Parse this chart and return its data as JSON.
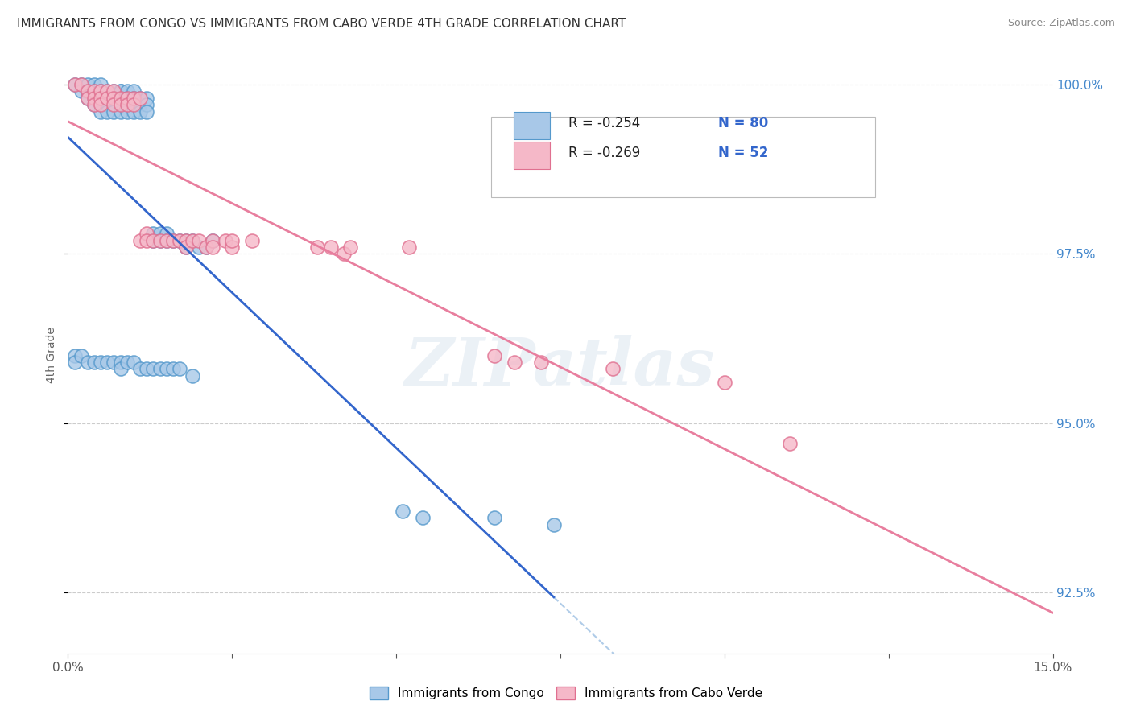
{
  "title": "IMMIGRANTS FROM CONGO VS IMMIGRANTS FROM CABO VERDE 4TH GRADE CORRELATION CHART",
  "source": "Source: ZipAtlas.com",
  "ylabel": "4th Grade",
  "congo_color_face": "#a8c8e8",
  "congo_color_edge": "#5599cc",
  "caboverde_color_face": "#f5b8c8",
  "caboverde_color_edge": "#e07090",
  "trendline_congo": "#3366cc",
  "trendline_caboverde": "#e87e9e",
  "trendline_dashed": "#b0cce8",
  "watermark": "ZIPatlas",
  "background": "#ffffff",
  "grid_color": "#cccccc",
  "x_min": 0.0,
  "x_max": 0.15,
  "y_min": 0.916,
  "y_max": 1.004,
  "ytick_color": "#4488cc",
  "xtick_color": "#555555",
  "congo_x": [
    0.001,
    0.002,
    0.002,
    0.003,
    0.003,
    0.003,
    0.004,
    0.004,
    0.004,
    0.004,
    0.005,
    0.005,
    0.005,
    0.005,
    0.005,
    0.006,
    0.006,
    0.006,
    0.006,
    0.007,
    0.007,
    0.007,
    0.007,
    0.008,
    0.008,
    0.008,
    0.008,
    0.008,
    0.009,
    0.009,
    0.009,
    0.009,
    0.01,
    0.01,
    0.01,
    0.01,
    0.011,
    0.011,
    0.011,
    0.012,
    0.012,
    0.012,
    0.013,
    0.013,
    0.014,
    0.014,
    0.015,
    0.015,
    0.016,
    0.017,
    0.018,
    0.018,
    0.019,
    0.02,
    0.021,
    0.022,
    0.001,
    0.001,
    0.002,
    0.003,
    0.004,
    0.005,
    0.006,
    0.007,
    0.008,
    0.008,
    0.009,
    0.01,
    0.011,
    0.012,
    0.013,
    0.014,
    0.015,
    0.016,
    0.017,
    0.019,
    0.051,
    0.054,
    0.065,
    0.074
  ],
  "congo_y": [
    1.0,
    1.0,
    0.999,
    1.0,
    0.999,
    0.998,
    1.0,
    0.999,
    0.998,
    0.997,
    1.0,
    0.999,
    0.998,
    0.997,
    0.996,
    0.999,
    0.998,
    0.997,
    0.996,
    0.999,
    0.998,
    0.997,
    0.996,
    0.999,
    0.999,
    0.998,
    0.997,
    0.996,
    0.999,
    0.998,
    0.997,
    0.996,
    0.999,
    0.998,
    0.997,
    0.996,
    0.998,
    0.997,
    0.996,
    0.998,
    0.997,
    0.996,
    0.978,
    0.977,
    0.978,
    0.977,
    0.978,
    0.977,
    0.977,
    0.977,
    0.977,
    0.976,
    0.977,
    0.976,
    0.976,
    0.977,
    0.96,
    0.959,
    0.96,
    0.959,
    0.959,
    0.959,
    0.959,
    0.959,
    0.959,
    0.958,
    0.959,
    0.959,
    0.958,
    0.958,
    0.958,
    0.958,
    0.958,
    0.958,
    0.958,
    0.957,
    0.937,
    0.936,
    0.936,
    0.935
  ],
  "caboverde_x": [
    0.001,
    0.002,
    0.003,
    0.003,
    0.004,
    0.004,
    0.004,
    0.005,
    0.005,
    0.005,
    0.006,
    0.006,
    0.007,
    0.007,
    0.007,
    0.008,
    0.008,
    0.009,
    0.009,
    0.01,
    0.01,
    0.011,
    0.011,
    0.012,
    0.012,
    0.013,
    0.014,
    0.015,
    0.016,
    0.017,
    0.018,
    0.018,
    0.019,
    0.02,
    0.021,
    0.022,
    0.022,
    0.024,
    0.025,
    0.025,
    0.028,
    0.038,
    0.04,
    0.042,
    0.043,
    0.052,
    0.065,
    0.068,
    0.072,
    0.083,
    0.1,
    0.11
  ],
  "caboverde_y": [
    1.0,
    1.0,
    0.999,
    0.998,
    0.999,
    0.998,
    0.997,
    0.999,
    0.998,
    0.997,
    0.999,
    0.998,
    0.999,
    0.998,
    0.997,
    0.998,
    0.997,
    0.998,
    0.997,
    0.998,
    0.997,
    0.998,
    0.977,
    0.978,
    0.977,
    0.977,
    0.977,
    0.977,
    0.977,
    0.977,
    0.977,
    0.976,
    0.977,
    0.977,
    0.976,
    0.977,
    0.976,
    0.977,
    0.976,
    0.977,
    0.977,
    0.976,
    0.976,
    0.975,
    0.976,
    0.976,
    0.96,
    0.959,
    0.959,
    0.958,
    0.956,
    0.947
  ]
}
